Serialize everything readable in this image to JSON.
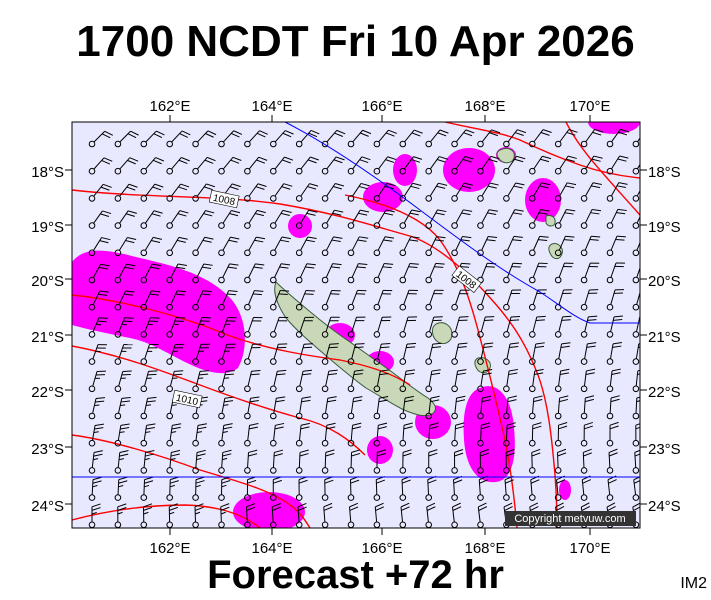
{
  "header": {
    "title": "1700 NCDT Fri 10 Apr 2026"
  },
  "footer": {
    "forecast": "Forecast +72 hr",
    "code": "IM2"
  },
  "map": {
    "copyright": "Copyright metvuw.com",
    "longitude_labels": [
      "162°E",
      "164°E",
      "166°E",
      "168°E",
      "170°E"
    ],
    "latitude_labels": [
      "18°S",
      "19°S",
      "20°S",
      "21°S",
      "22°S",
      "23°S",
      "24°S"
    ],
    "isobar_labels": [
      "1008",
      "1008",
      "1010"
    ],
    "colors": {
      "background": "#e8e8ff",
      "rain": "#ff00ff",
      "isobar": "#ff0000",
      "land": "#c8d8b8",
      "wind_barb": "#000000"
    },
    "wind_barb_icon": "wind-barb-icon"
  }
}
